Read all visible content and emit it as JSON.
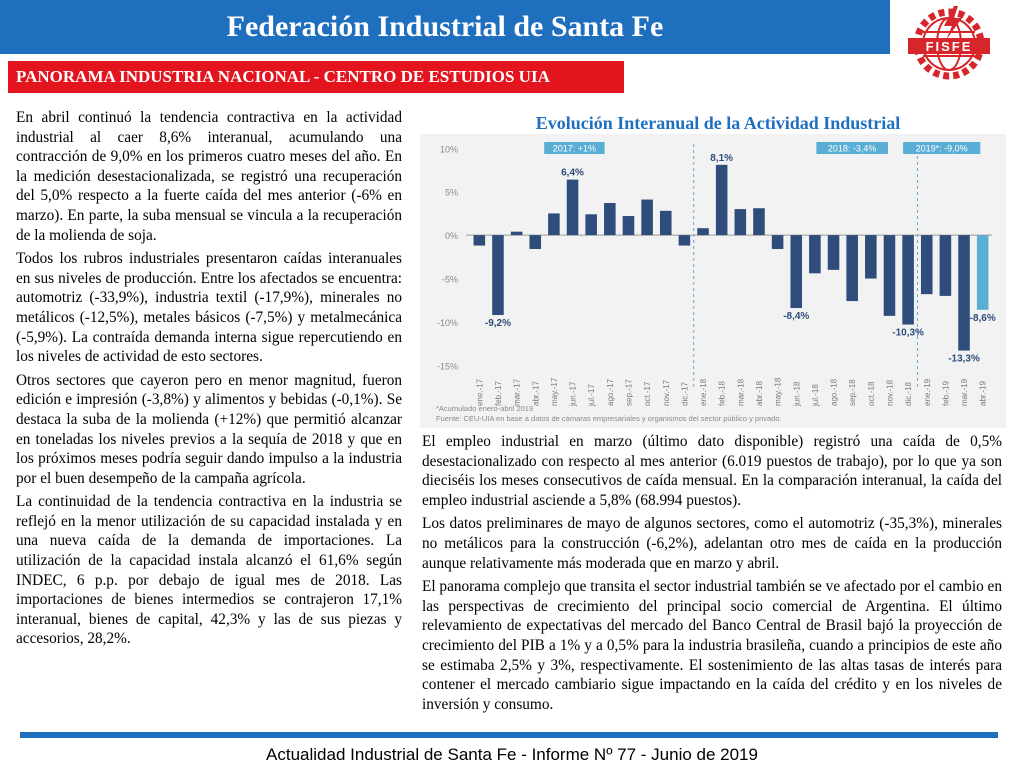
{
  "header": {
    "title": "Federación Industrial de Santa Fe"
  },
  "logo": {
    "text": "FISFE",
    "icon": "fisfe-gear-logo",
    "color": "#d7262b"
  },
  "subtitle": {
    "text": "PANORAMA INDUSTRIA NACIONAL - CENTRO DE ESTUDIOS UIA"
  },
  "left_paragraphs": [
    "En abril continuó la tendencia contractiva en la actividad industrial al caer 8,6% interanual, acumulando una contracción de 9,0% en los primeros cuatro meses del año. En la medición desestacionalizada, se registró una recuperación del 5,0% respecto a la fuerte caída del mes anterior (-6% en marzo). En parte, la suba mensual se vincula a la recuperación de la molienda de soja.",
    "Todos los rubros industriales presentaron caídas interanuales en sus niveles de producción. Entre los afectados se encuentra: automotriz (-33,9%), industria textil (-17,9%), minerales no metálicos (-12,5%), metales básicos (-7,5%) y metalmecánica (-5,9%). La contraída demanda interna sigue repercutiendo en los niveles de actividad de esto sectores.",
    "Otros sectores que cayeron pero en menor magnitud, fueron edición e impresión (-3,8%) y alimentos y bebidas (-0,1%). Se destaca la suba de la molienda (+12%) que permitió alcanzar en toneladas los niveles previos a la sequía de 2018 y que en los próximos meses podría seguir dando impulso a la industria por el buen desempeño de la campaña agrícola.",
    "La continuidad de la tendencia contractiva en la industria se reflejó en la menor utilización de su capacidad instalada y en una nueva caída de la demanda de importaciones. La utilización de la capacidad instala alcanzó el 61,6% según INDEC, 6 p.p. por debajo de igual mes de 2018. Las importaciones de bienes intermedios se contrajeron 17,1% interanual, bienes de capital, 42,3% y las de sus piezas y accesorios, 28,2%."
  ],
  "right_paragraphs": [
    "El empleo industrial en marzo (último dato disponible) registró una caída de 0,5% desestacionalizado con respecto al mes anterior (6.019 puestos de trabajo), por lo que ya son dieciséis los meses consecutivos de caída mensual. En la comparación interanual, la caída del empleo industrial asciende a 5,8% (68.994 puestos).",
    "Los datos preliminares de mayo de algunos sectores, como el automotriz (-35,3%), minerales no metálicos para la construcción (-6,2%), adelantan otro mes de caída en la producción aunque relativamente más moderada que en marzo y abril.",
    "El panorama complejo que transita el sector industrial también se ve afectado por el cambio en las perspectivas de crecimiento del principal socio comercial de Argentina. El último relevamiento de expectativas del mercado del Banco Central de Brasil bajó la proyección de crecimiento del PIB a 1% y a 0,5% para la industria brasileña, cuando a principios de este año se estimaba 2,5% y 3%, respectivamente. El sostenimiento de las altas tasas de interés para contener el mercado cambiario sigue impactando en la caída del crédito y en los niveles de inversión y consumo."
  ],
  "chart_title": "Evolución Interanual de la Actividad Industrial",
  "chart_data": {
    "type": "bar",
    "categories": [
      "ene.-17",
      "feb.-17",
      "mar.-17",
      "abr.-17",
      "may.-17",
      "jun.-17",
      "jul.-17",
      "ago.-17",
      "sep.-17",
      "oct.-17",
      "nov.-17",
      "dic.-17",
      "ene.-18",
      "feb.-18",
      "mar.-18",
      "abr.-18",
      "may.-18",
      "jun.-18",
      "jul.-18",
      "ago.-18",
      "sep.-18",
      "oct.-18",
      "nov.-18",
      "dic.-18",
      "ene.-19",
      "feb.-19",
      "mar.-19",
      "abr.-19"
    ],
    "values": [
      -1.2,
      -9.2,
      0.4,
      -1.6,
      2.5,
      6.4,
      2.4,
      3.7,
      2.2,
      4.1,
      2.8,
      -1.2,
      0.8,
      8.1,
      3.0,
      3.1,
      -1.6,
      -8.4,
      -4.4,
      -4.0,
      -7.6,
      -5.0,
      -9.3,
      -10.3,
      -6.8,
      -7.0,
      -13.3,
      -8.6
    ],
    "data_labels": [
      {
        "index": 1,
        "text": "-9,2%"
      },
      {
        "index": 5,
        "text": "6,4%"
      },
      {
        "index": 13,
        "text": "8,1%"
      },
      {
        "index": 17,
        "text": "-8,4%"
      },
      {
        "index": 23,
        "text": "-10,3%"
      },
      {
        "index": 26,
        "text": "-13,3%"
      },
      {
        "index": 27,
        "text": "-8,6%"
      }
    ],
    "yticks": [
      10,
      5,
      0,
      -5,
      -10,
      -15
    ],
    "ytick_labels": [
      "10%",
      "5%",
      "0%",
      "-5%",
      "-10%",
      "-15%"
    ],
    "ylim": [
      -16,
      10.5
    ],
    "period_labels": [
      {
        "text": "2017: +1%",
        "start": 0,
        "end": 11
      },
      {
        "text": "2018: -3,4%",
        "start": 12,
        "end": 23
      },
      {
        "text": "2019*: -9,0%",
        "start": 24,
        "end": 27
      }
    ],
    "footnotes": [
      "*Acumulado enero-abril 2019",
      "Fuente: CEU-UIA en base a datos de cámaras empresariales y organismos del sector público y privado."
    ],
    "bar_color": "#2e4d7a",
    "highlight_color": "#5aaed6",
    "highlight_index": 27,
    "label_bg_color": "#5aaed6",
    "grid": false,
    "xlabel": "",
    "ylabel": ""
  },
  "footer": {
    "text": "Actualidad Industrial de Santa Fe - Informe Nº 77 - Junio de 2019"
  }
}
